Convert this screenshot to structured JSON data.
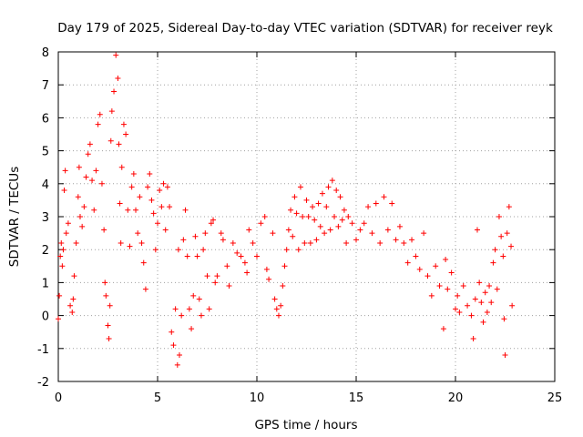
{
  "chart_data": {
    "type": "scatter",
    "title": "Day 179 of 2025, Sidereal Day-to-day VTEC variation (SDTVAR) for receiver reyk",
    "xlabel": "GPS time / hours",
    "ylabel": "SDTVAR / TECUs",
    "xlim": [
      0,
      25
    ],
    "ylim": [
      -2,
      8
    ],
    "xticks": [
      0,
      5,
      10,
      15,
      20,
      25
    ],
    "yticks": [
      -2,
      -1,
      0,
      1,
      2,
      3,
      4,
      5,
      6,
      7,
      8
    ],
    "grid": true,
    "marker": "+",
    "color": "#ff0000",
    "series": [
      {
        "name": "SDTVAR",
        "points": [
          [
            0.0,
            -0.1
          ],
          [
            0.05,
            0.6
          ],
          [
            0.1,
            1.8
          ],
          [
            0.15,
            2.2
          ],
          [
            0.2,
            1.5
          ],
          [
            0.25,
            2.0
          ],
          [
            0.3,
            3.8
          ],
          [
            0.35,
            4.4
          ],
          [
            0.4,
            2.5
          ],
          [
            0.5,
            2.8
          ],
          [
            0.6,
            0.3
          ],
          [
            0.7,
            0.1
          ],
          [
            0.75,
            0.5
          ],
          [
            0.8,
            1.2
          ],
          [
            0.9,
            2.2
          ],
          [
            1.0,
            3.6
          ],
          [
            1.05,
            4.5
          ],
          [
            1.1,
            3.0
          ],
          [
            1.2,
            2.7
          ],
          [
            1.3,
            3.3
          ],
          [
            1.4,
            4.2
          ],
          [
            1.5,
            4.9
          ],
          [
            1.6,
            5.2
          ],
          [
            1.7,
            4.1
          ],
          [
            1.8,
            3.2
          ],
          [
            1.9,
            4.4
          ],
          [
            2.0,
            5.8
          ],
          [
            2.1,
            6.1
          ],
          [
            2.2,
            4.0
          ],
          [
            2.3,
            2.6
          ],
          [
            2.35,
            1.0
          ],
          [
            2.4,
            0.6
          ],
          [
            2.5,
            -0.3
          ],
          [
            2.55,
            -0.7
          ],
          [
            2.6,
            0.3
          ],
          [
            2.65,
            5.3
          ],
          [
            2.7,
            6.2
          ],
          [
            2.8,
            6.8
          ],
          [
            2.9,
            7.9
          ],
          [
            3.0,
            7.2
          ],
          [
            3.05,
            5.2
          ],
          [
            3.1,
            3.4
          ],
          [
            3.15,
            2.2
          ],
          [
            3.2,
            4.5
          ],
          [
            3.3,
            5.8
          ],
          [
            3.4,
            5.5
          ],
          [
            3.5,
            3.2
          ],
          [
            3.6,
            2.1
          ],
          [
            3.7,
            3.9
          ],
          [
            3.8,
            4.3
          ],
          [
            3.9,
            3.2
          ],
          [
            4.0,
            2.5
          ],
          [
            4.1,
            3.6
          ],
          [
            4.2,
            2.2
          ],
          [
            4.3,
            1.6
          ],
          [
            4.4,
            0.8
          ],
          [
            4.5,
            3.9
          ],
          [
            4.6,
            4.3
          ],
          [
            4.7,
            3.5
          ],
          [
            4.8,
            3.1
          ],
          [
            4.9,
            2.0
          ],
          [
            5.0,
            2.8
          ],
          [
            5.1,
            3.8
          ],
          [
            5.2,
            3.3
          ],
          [
            5.3,
            4.0
          ],
          [
            5.4,
            2.6
          ],
          [
            5.5,
            3.9
          ],
          [
            5.6,
            3.3
          ],
          [
            5.7,
            -0.5
          ],
          [
            5.8,
            -0.9
          ],
          [
            5.9,
            0.2
          ],
          [
            6.0,
            -1.5
          ],
          [
            6.05,
            2.0
          ],
          [
            6.1,
            -1.2
          ],
          [
            6.2,
            0.0
          ],
          [
            6.3,
            2.3
          ],
          [
            6.4,
            3.2
          ],
          [
            6.5,
            1.8
          ],
          [
            6.6,
            0.2
          ],
          [
            6.7,
            -0.4
          ],
          [
            6.8,
            0.6
          ],
          [
            6.9,
            2.4
          ],
          [
            7.0,
            1.8
          ],
          [
            7.1,
            0.5
          ],
          [
            7.2,
            0.0
          ],
          [
            7.3,
            2.0
          ],
          [
            7.4,
            2.5
          ],
          [
            7.5,
            1.2
          ],
          [
            7.6,
            0.2
          ],
          [
            7.7,
            2.8
          ],
          [
            7.8,
            2.9
          ],
          [
            7.9,
            1.0
          ],
          [
            8.0,
            1.2
          ],
          [
            8.2,
            2.5
          ],
          [
            8.3,
            2.3
          ],
          [
            8.5,
            1.5
          ],
          [
            8.6,
            0.9
          ],
          [
            8.8,
            2.2
          ],
          [
            9.0,
            1.9
          ],
          [
            9.2,
            1.8
          ],
          [
            9.4,
            1.6
          ],
          [
            9.5,
            1.3
          ],
          [
            9.6,
            2.6
          ],
          [
            9.8,
            2.2
          ],
          [
            10.0,
            1.8
          ],
          [
            10.2,
            2.8
          ],
          [
            10.4,
            3.0
          ],
          [
            10.5,
            1.4
          ],
          [
            10.6,
            1.1
          ],
          [
            10.8,
            2.5
          ],
          [
            10.9,
            0.5
          ],
          [
            11.0,
            0.2
          ],
          [
            11.1,
            0.0
          ],
          [
            11.2,
            0.3
          ],
          [
            11.3,
            0.9
          ],
          [
            11.4,
            1.5
          ],
          [
            11.5,
            2.0
          ],
          [
            11.6,
            2.6
          ],
          [
            11.7,
            3.2
          ],
          [
            11.8,
            2.4
          ],
          [
            11.9,
            3.6
          ],
          [
            12.0,
            3.1
          ],
          [
            12.1,
            2.0
          ],
          [
            12.2,
            3.9
          ],
          [
            12.3,
            3.0
          ],
          [
            12.4,
            2.2
          ],
          [
            12.5,
            3.5
          ],
          [
            12.6,
            3.0
          ],
          [
            12.7,
            2.2
          ],
          [
            12.8,
            3.3
          ],
          [
            12.9,
            2.9
          ],
          [
            13.0,
            2.3
          ],
          [
            13.1,
            3.4
          ],
          [
            13.2,
            2.7
          ],
          [
            13.3,
            3.7
          ],
          [
            13.4,
            2.5
          ],
          [
            13.5,
            3.3
          ],
          [
            13.6,
            3.9
          ],
          [
            13.7,
            2.6
          ],
          [
            13.8,
            4.1
          ],
          [
            13.9,
            3.0
          ],
          [
            14.0,
            3.8
          ],
          [
            14.1,
            2.7
          ],
          [
            14.2,
            3.6
          ],
          [
            14.3,
            2.9
          ],
          [
            14.4,
            3.2
          ],
          [
            14.5,
            2.2
          ],
          [
            14.6,
            3.0
          ],
          [
            14.8,
            2.8
          ],
          [
            15.0,
            2.3
          ],
          [
            15.2,
            2.6
          ],
          [
            15.4,
            2.8
          ],
          [
            15.6,
            3.3
          ],
          [
            15.8,
            2.5
          ],
          [
            16.0,
            3.4
          ],
          [
            16.2,
            2.2
          ],
          [
            16.4,
            3.6
          ],
          [
            16.6,
            2.6
          ],
          [
            16.8,
            3.4
          ],
          [
            17.0,
            2.3
          ],
          [
            17.2,
            2.7
          ],
          [
            17.4,
            2.2
          ],
          [
            17.6,
            1.6
          ],
          [
            17.8,
            2.3
          ],
          [
            18.0,
            1.8
          ],
          [
            18.2,
            1.4
          ],
          [
            18.4,
            2.5
          ],
          [
            18.6,
            1.2
          ],
          [
            18.8,
            0.6
          ],
          [
            19.0,
            1.5
          ],
          [
            19.2,
            0.9
          ],
          [
            19.4,
            -0.4
          ],
          [
            19.5,
            1.7
          ],
          [
            19.6,
            0.8
          ],
          [
            19.8,
            1.3
          ],
          [
            20.0,
            0.2
          ],
          [
            20.1,
            0.6
          ],
          [
            20.2,
            0.1
          ],
          [
            20.4,
            0.9
          ],
          [
            20.6,
            0.3
          ],
          [
            20.8,
            0.0
          ],
          [
            20.9,
            -0.7
          ],
          [
            21.0,
            0.5
          ],
          [
            21.1,
            2.6
          ],
          [
            21.2,
            1.0
          ],
          [
            21.3,
            0.4
          ],
          [
            21.4,
            -0.2
          ],
          [
            21.5,
            0.7
          ],
          [
            21.6,
            0.1
          ],
          [
            21.7,
            0.9
          ],
          [
            21.8,
            0.4
          ],
          [
            21.9,
            1.6
          ],
          [
            22.0,
            2.0
          ],
          [
            22.1,
            0.8
          ],
          [
            22.2,
            3.0
          ],
          [
            22.3,
            2.4
          ],
          [
            22.4,
            1.8
          ],
          [
            22.45,
            -0.1
          ],
          [
            22.5,
            -1.2
          ],
          [
            22.6,
            2.5
          ],
          [
            22.7,
            3.3
          ],
          [
            22.8,
            2.1
          ],
          [
            22.85,
            0.3
          ]
        ]
      }
    ]
  }
}
